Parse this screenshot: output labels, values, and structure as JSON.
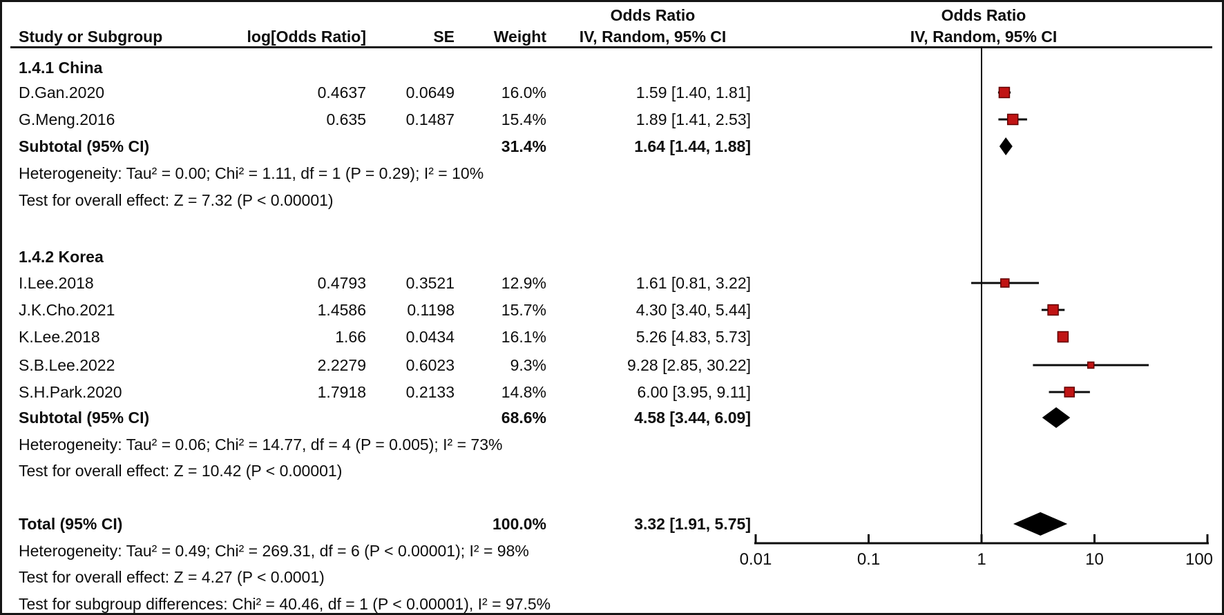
{
  "header": {
    "or_title_text_col": "Odds Ratio",
    "or_title_plot_col": "Odds Ratio",
    "col_study": "Study or Subgroup",
    "col_log_or": "log[Odds Ratio]",
    "col_se": "SE",
    "col_weight": "Weight",
    "col_ci": "IV, Random, 95% CI",
    "col_ci_plot": "IV, Random, 95% CI"
  },
  "groups": [
    {
      "title": "1.4.1 China",
      "studies": [
        {
          "name": "D.Gan.2020",
          "log_or": "0.4637",
          "se": "0.0649",
          "weight": "16.0%",
          "ci": "1.59 [1.40, 1.81]"
        },
        {
          "name": "G.Meng.2016",
          "log_or": "0.635",
          "se": "0.1487",
          "weight": "15.4%",
          "ci": "1.89 [1.41, 2.53]"
        }
      ],
      "subtotal": {
        "label": "Subtotal (95% CI)",
        "weight": "31.4%",
        "ci": "1.64 [1.44, 1.88]"
      },
      "heterogeneity": "Heterogeneity: Tau² = 0.00; Chi² = 1.11, df = 1 (P = 0.29); I² = 10%",
      "overall_effect": "Test for overall effect: Z = 7.32 (P < 0.00001)"
    },
    {
      "title": "1.4.2 Korea",
      "studies": [
        {
          "name": "I.Lee.2018",
          "log_or": "0.4793",
          "se": "0.3521",
          "weight": "12.9%",
          "ci": "1.61 [0.81, 3.22]"
        },
        {
          "name": "J.K.Cho.2021",
          "log_or": "1.4586",
          "se": "0.1198",
          "weight": "15.7%",
          "ci": "4.30 [3.40, 5.44]"
        },
        {
          "name": "K.Lee.2018",
          "log_or": "1.66",
          "se": "0.0434",
          "weight": "16.1%",
          "ci": "5.26 [4.83, 5.73]"
        },
        {
          "name": "S.B.Lee.2022",
          "log_or": "2.2279",
          "se": "0.6023",
          "weight": "9.3%",
          "ci": "9.28 [2.85, 30.22]"
        },
        {
          "name": "S.H.Park.2020",
          "log_or": "1.7918",
          "se": "0.2133",
          "weight": "14.8%",
          "ci": "6.00 [3.95, 9.11]"
        }
      ],
      "subtotal": {
        "label": "Subtotal (95% CI)",
        "weight": "68.6%",
        "ci": "4.58 [3.44, 6.09]"
      },
      "heterogeneity": "Heterogeneity: Tau² = 0.06; Chi² = 14.77, df = 4 (P = 0.005); I² = 73%",
      "overall_effect": "Test for overall effect: Z = 10.42 (P < 0.00001)"
    }
  ],
  "total": {
    "label": "Total (95% CI)",
    "weight": "100.0%",
    "ci": "3.32 [1.91, 5.75]",
    "heterogeneity": "Heterogeneity: Tau² = 0.49; Chi² = 269.31, df = 6 (P < 0.00001); I² = 98%",
    "overall_effect": "Test for overall effect: Z = 4.27 (P < 0.0001)",
    "subgroup_diff": "Test for subgroup differences: Chi² = 40.46, df = 1 (P < 0.00001), I² = 97.5%"
  },
  "colors": {
    "marker_fill": "#c01414",
    "marker_edge": "#600000",
    "line": "#0d0d0d",
    "diamond": "#000000"
  },
  "chart_data": {
    "type": "scatter",
    "variant": "forest-plot",
    "effect_measure": "Odds Ratio, IV, Random, 95% CI",
    "x_scale": "log10",
    "x_ticks": [
      0.01,
      0.1,
      1,
      10,
      100
    ],
    "x_tick_labels": [
      "0.01",
      "0.1",
      "1",
      "10",
      "100"
    ],
    "null_line": 1,
    "studies": [
      {
        "group": "1.4.1 China",
        "name": "D.Gan.2020",
        "or": 1.59,
        "ci_low": 1.4,
        "ci_high": 1.81,
        "weight_pct": 16.0
      },
      {
        "group": "1.4.1 China",
        "name": "G.Meng.2016",
        "or": 1.89,
        "ci_low": 1.41,
        "ci_high": 2.53,
        "weight_pct": 15.4
      },
      {
        "group": "1.4.2 Korea",
        "name": "I.Lee.2018",
        "or": 1.61,
        "ci_low": 0.81,
        "ci_high": 3.22,
        "weight_pct": 12.9
      },
      {
        "group": "1.4.2 Korea",
        "name": "J.K.Cho.2021",
        "or": 4.3,
        "ci_low": 3.4,
        "ci_high": 5.44,
        "weight_pct": 15.7
      },
      {
        "group": "1.4.2 Korea",
        "name": "K.Lee.2018",
        "or": 5.26,
        "ci_low": 4.83,
        "ci_high": 5.73,
        "weight_pct": 16.1
      },
      {
        "group": "1.4.2 Korea",
        "name": "S.B.Lee.2022",
        "or": 9.28,
        "ci_low": 2.85,
        "ci_high": 30.22,
        "weight_pct": 9.3
      },
      {
        "group": "1.4.2 Korea",
        "name": "S.H.Park.2020",
        "or": 6.0,
        "ci_low": 3.95,
        "ci_high": 9.11,
        "weight_pct": 14.8
      }
    ],
    "subtotals": [
      {
        "group": "1.4.1 China",
        "or": 1.64,
        "ci_low": 1.44,
        "ci_high": 1.88,
        "weight_pct": 31.4
      },
      {
        "group": "1.4.2 Korea",
        "or": 4.58,
        "ci_low": 3.44,
        "ci_high": 6.09,
        "weight_pct": 68.6
      }
    ],
    "total": {
      "or": 3.32,
      "ci_low": 1.91,
      "ci_high": 5.75,
      "weight_pct": 100.0
    }
  }
}
